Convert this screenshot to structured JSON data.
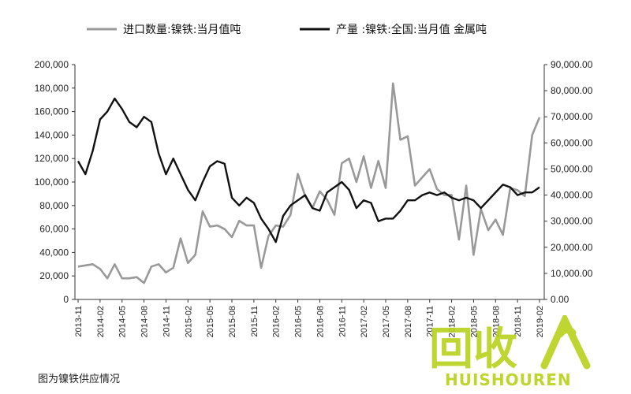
{
  "chart_data": {
    "type": "line",
    "series": [
      {
        "name": "进口数量:镍铁:当月值吨",
        "axis": "left",
        "color": "#999999",
        "values": [
          28000,
          29000,
          30000,
          26000,
          18000,
          30000,
          18000,
          18000,
          19000,
          14000,
          28000,
          30000,
          23000,
          27000,
          52000,
          31000,
          38000,
          75000,
          62000,
          63000,
          60000,
          53000,
          67000,
          63000,
          63000,
          27000,
          54000,
          63000,
          62000,
          72000,
          107000,
          88000,
          78000,
          92000,
          85000,
          72000,
          116000,
          120000,
          100000,
          122000,
          95000,
          118000,
          95000,
          184000,
          136000,
          139000,
          97000,
          104000,
          111000,
          94000,
          89000,
          89000,
          51000,
          97000,
          38000,
          77000,
          59000,
          68000,
          55000,
          95000,
          93000,
          88000,
          140000,
          155000
        ]
      },
      {
        "name": "产量 :镍铁:全国:当月值 金属吨",
        "axis": "right",
        "color": "#111111",
        "values": [
          53000,
          48000,
          57000,
          69000,
          72000,
          77000,
          73000,
          68000,
          66000,
          70000,
          68000,
          56000,
          48000,
          54000,
          48000,
          42000,
          38000,
          45000,
          51000,
          53000,
          52000,
          39000,
          36000,
          39000,
          37000,
          31000,
          27000,
          22000,
          32000,
          36000,
          38000,
          40000,
          35000,
          34000,
          41000,
          43000,
          45000,
          42000,
          35000,
          38000,
          37000,
          30000,
          31000,
          31000,
          34000,
          38000,
          38000,
          40000,
          41000,
          40000,
          41000,
          39000,
          38000,
          39000,
          38000,
          35000,
          38000,
          41000,
          44000,
          43000,
          40000,
          41000,
          41000,
          43000
        ]
      }
    ],
    "x_labels": [
      "2013-11",
      "2014-02",
      "2014-05",
      "2014-08",
      "2014-11",
      "2015-02",
      "2015-05",
      "2015-08",
      "2015-11",
      "2016-02",
      "2016-05",
      "2016-08",
      "2016-11",
      "2017-02",
      "2017-05",
      "2017-08",
      "2017-11",
      "2018-02",
      "2018-05",
      "2018-08",
      "2018-11",
      "2019-02"
    ],
    "y_left": {
      "ylim": [
        0,
        200000
      ],
      "ticks": [
        "0",
        "20,000",
        "40,000",
        "60,000",
        "80,000",
        "100,000",
        "120,000",
        "140,000",
        "160,000",
        "180,000",
        "200,000"
      ]
    },
    "y_right": {
      "ylim": [
        0,
        90000
      ],
      "ticks": [
        "0.00",
        "10,000.00",
        "20,000.00",
        "30,000.00",
        "40,000.00",
        "50,000.00",
        "60,000.00",
        "70,000.00",
        "80,000.00",
        "90,000.00"
      ]
    },
    "legend_position": "top",
    "grid": false
  },
  "caption": "图为镍铁供应情况",
  "watermark": {
    "main": "回收",
    "sub": "HUISHOUREN",
    "color": "#b8d21c"
  }
}
